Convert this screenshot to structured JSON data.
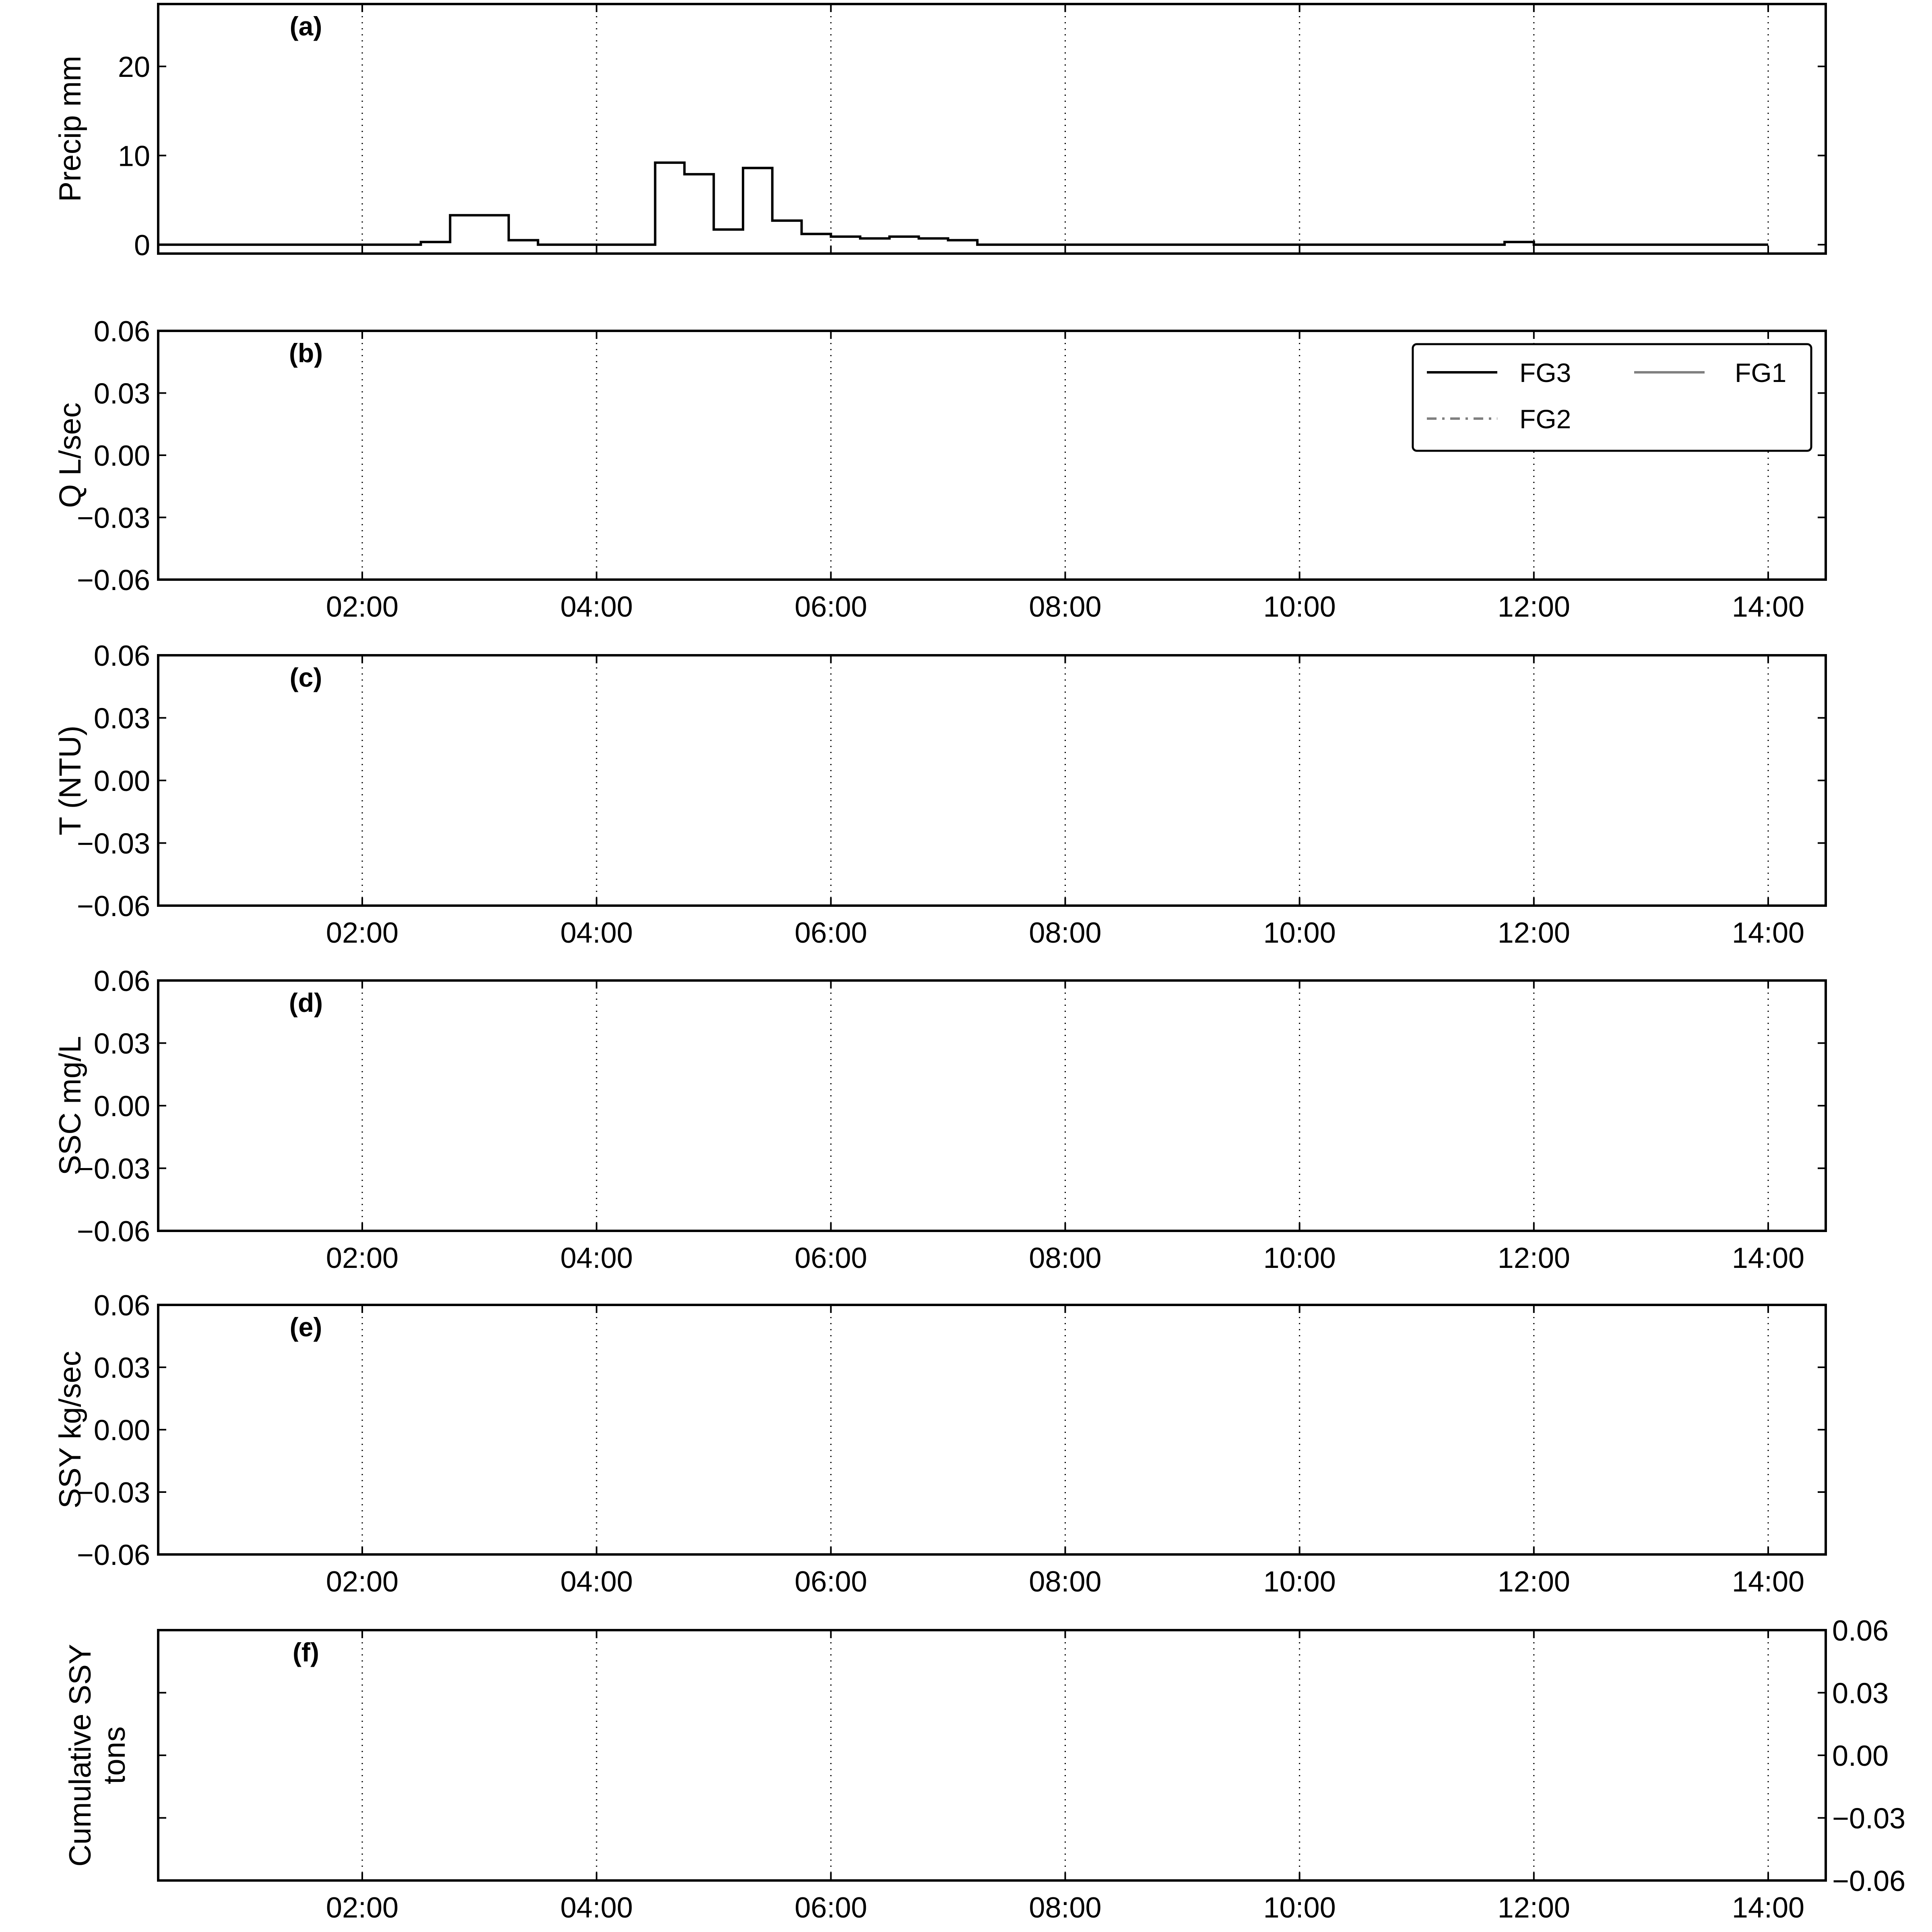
{
  "chart_data": [
    {
      "type": "line",
      "panel_label": "(a)",
      "ylabel": "Precip mm",
      "ylim": [
        -1,
        27
      ],
      "y_ticks": [
        "0",
        "10",
        "20"
      ],
      "y_axis_side": "left",
      "x_tick_labels": [],
      "grid": "vertical dotted",
      "series": [
        {
          "style": "step",
          "color": "#000000",
          "x": [
            "00:15",
            "02:30",
            "02:45",
            "03:15",
            "03:30",
            "04:15",
            "04:30",
            "04:45",
            "05:00",
            "05:15",
            "05:30",
            "05:45",
            "06:00",
            "06:15",
            "06:30",
            "06:45",
            "07:00",
            "07:15",
            "11:45",
            "12:00",
            "14:00"
          ],
          "values": [
            0,
            0.3,
            3.3,
            0.5,
            0,
            0,
            9.2,
            7.9,
            1.7,
            8.6,
            2.7,
            1.2,
            0.9,
            0.7,
            0.9,
            0.7,
            0.5,
            0,
            0.3,
            0,
            0
          ]
        }
      ]
    },
    {
      "type": "line",
      "panel_label": "(b)",
      "ylabel": "Q L/sec",
      "ylim": [
        -0.06,
        0.06
      ],
      "y_ticks": [
        "0.06",
        "0.03",
        "0.00",
        "−0.03",
        "−0.06"
      ],
      "y_axis_side": "left",
      "x_tick_labels": [
        "02:00",
        "04:00",
        "06:00",
        "08:00",
        "10:00",
        "12:00",
        "14:00"
      ],
      "grid": "vertical dotted",
      "legend": {
        "position": "upper-right",
        "entries": [
          {
            "name": "FG3",
            "color": "#000000",
            "dash": "solid"
          },
          {
            "name": "FG1",
            "color": "#808080",
            "dash": "solid"
          },
          {
            "name": "FG2",
            "color": "#808080",
            "dash": "dash-dot"
          }
        ]
      },
      "series": []
    },
    {
      "type": "line",
      "panel_label": "(c)",
      "ylabel": "T (NTU)",
      "ylim": [
        -0.06,
        0.06
      ],
      "y_ticks": [
        "0.06",
        "0.03",
        "0.00",
        "−0.03",
        "−0.06"
      ],
      "y_axis_side": "left",
      "x_tick_labels": [
        "02:00",
        "04:00",
        "06:00",
        "08:00",
        "10:00",
        "12:00",
        "14:00"
      ],
      "grid": "vertical dotted",
      "series": []
    },
    {
      "type": "line",
      "panel_label": "(d)",
      "ylabel": "SSC mg/L",
      "ylim": [
        -0.06,
        0.06
      ],
      "y_ticks": [
        "0.06",
        "0.03",
        "0.00",
        "−0.03",
        "−0.06"
      ],
      "y_axis_side": "left",
      "x_tick_labels": [
        "02:00",
        "04:00",
        "06:00",
        "08:00",
        "10:00",
        "12:00",
        "14:00"
      ],
      "grid": "vertical dotted",
      "series": []
    },
    {
      "type": "line",
      "panel_label": "(e)",
      "ylabel": "SSY kg/sec",
      "ylim": [
        -0.06,
        0.06
      ],
      "y_ticks": [
        "0.06",
        "0.03",
        "0.00",
        "−0.03",
        "−0.06"
      ],
      "y_axis_side": "left",
      "x_tick_labels": [
        "02:00",
        "04:00",
        "06:00",
        "08:00",
        "10:00",
        "12:00",
        "14:00"
      ],
      "grid": "vertical dotted",
      "series": []
    },
    {
      "type": "line",
      "panel_label": "(f)",
      "ylabel": [
        "Cumulative SSY",
        "tons"
      ],
      "ylim": [
        -0.06,
        0.06
      ],
      "y_ticks": [
        "0.06",
        "0.03",
        "0.00",
        "−0.03",
        "−0.06"
      ],
      "y_axis_side": "right",
      "x_tick_labels": [
        "02:00",
        "04:00",
        "06:00",
        "08:00",
        "10:00",
        "12:00",
        "14:00"
      ],
      "grid": "vertical dotted",
      "series": []
    }
  ]
}
